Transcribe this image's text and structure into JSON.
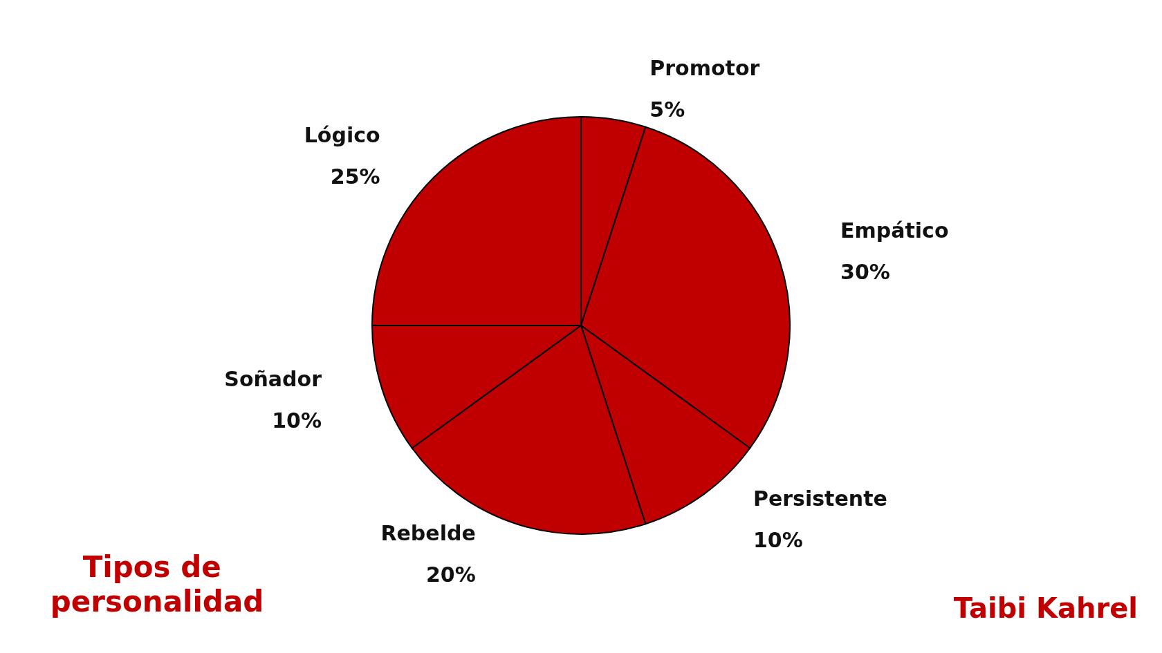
{
  "chart_data": {
    "type": "pie",
    "title": "Tipos de personalidad",
    "categories": [
      "Promotor",
      "Empático",
      "Persistente",
      "Rebelde",
      "Soñador",
      "Lógico"
    ],
    "values": [
      5,
      30,
      10,
      20,
      10,
      25
    ],
    "colors": [
      "#c00000",
      "#c00000",
      "#c00000",
      "#c00000",
      "#c00000",
      "#c00000"
    ],
    "value_labels": [
      "5%",
      "30%",
      "10%",
      "20%",
      "10%",
      "25%"
    ],
    "legend": false,
    "annotations": [
      "Taibi Kahrel"
    ]
  }
}
